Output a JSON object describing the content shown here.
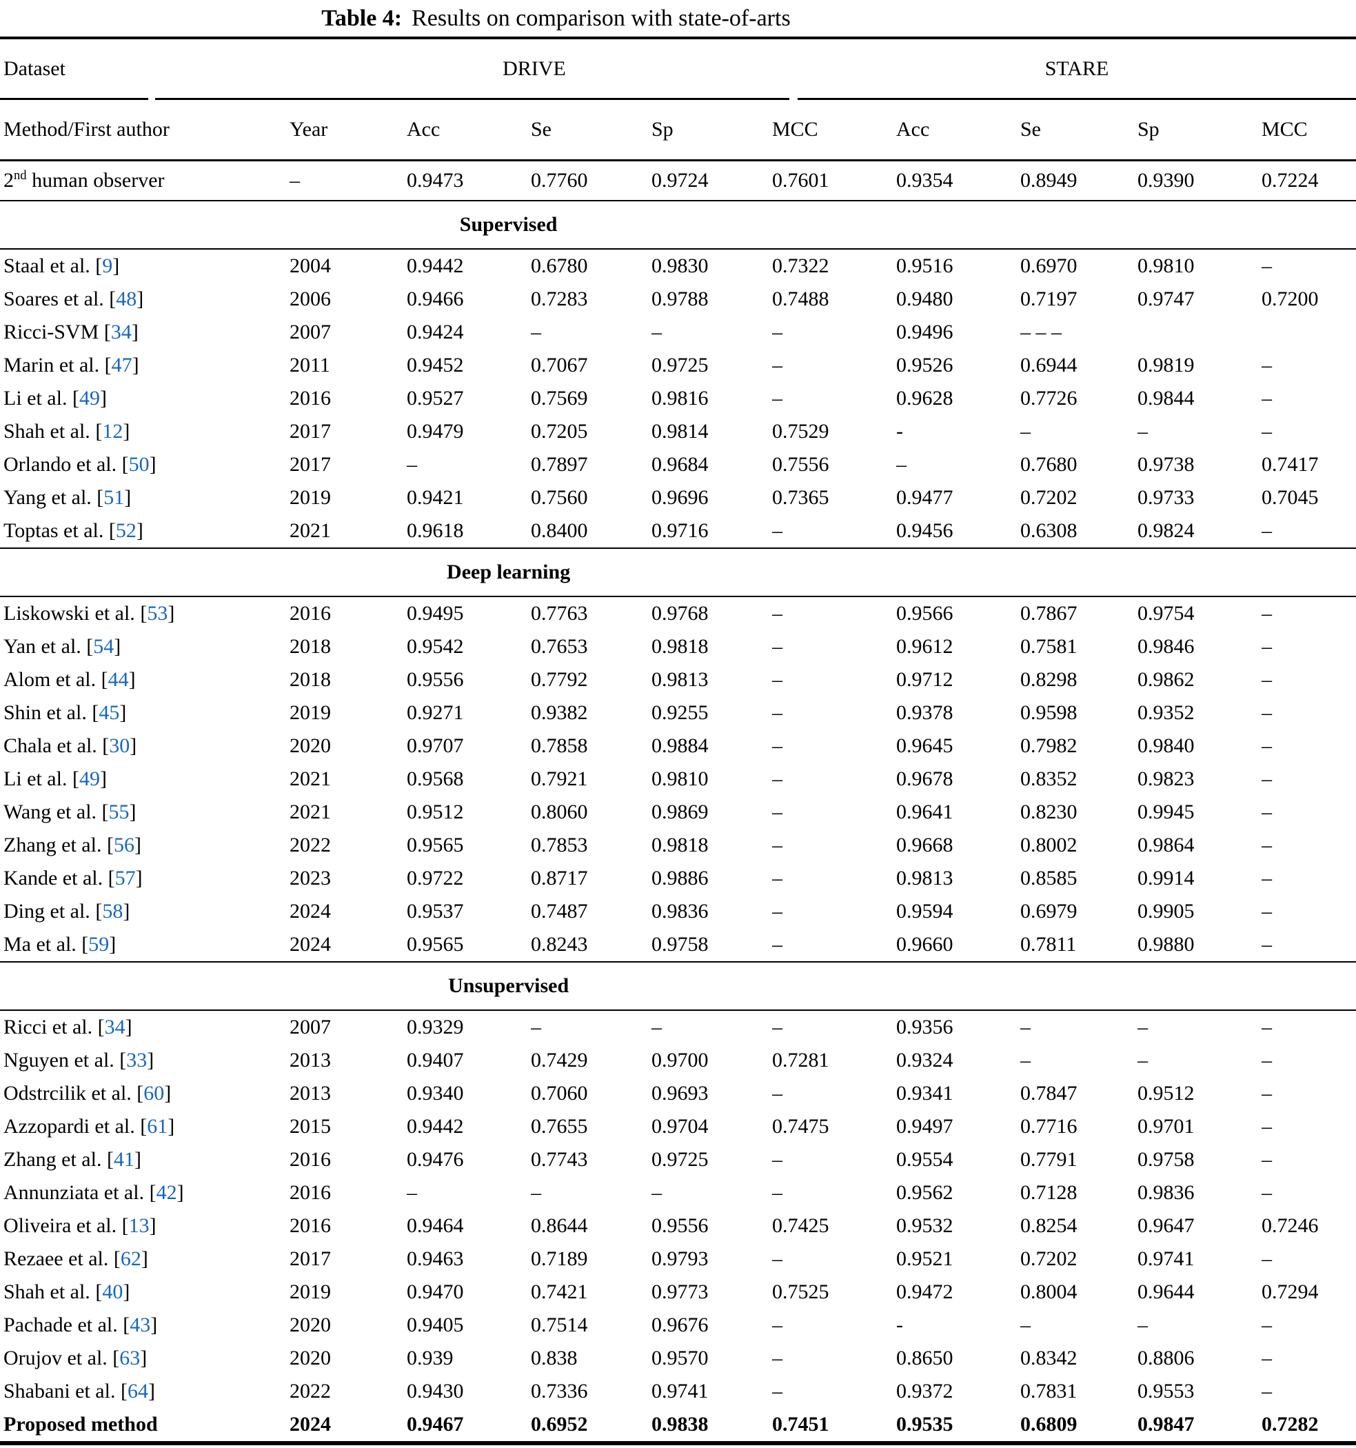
{
  "title": {
    "label": "Table 4:",
    "text": "Results on comparison with state-of-arts"
  },
  "header": {
    "dataset_label": "Dataset",
    "group1": "DRIVE",
    "group2": "STARE",
    "columns": [
      "Method/First author",
      "Year",
      "Acc",
      "Se",
      "Sp",
      "MCC",
      "Acc",
      "Se",
      "Sp",
      "MCC"
    ]
  },
  "baseline_row": {
    "method": "2^{nd} human observer",
    "cells": [
      "–",
      "0.9473",
      "0.7760",
      "0.9724",
      "0.7601",
      "0.9354",
      "0.8949",
      "0.9390",
      "0.7224"
    ]
  },
  "sections": [
    {
      "heading": "Supervised",
      "rows": [
        {
          "method": "Staal et al. [9]",
          "cells": [
            "2004",
            "0.9442",
            "0.6780",
            "0.9830",
            "0.7322",
            "0.9516",
            "0.6970",
            "0.9810",
            "–"
          ]
        },
        {
          "method": "Soares et al. [48]",
          "cells": [
            "2006",
            "0.9466",
            "0.7283",
            "0.9788",
            "0.7488",
            "0.9480",
            "0.7197",
            "0.9747",
            "0.7200"
          ]
        },
        {
          "method": "Ricci-SVM [34]",
          "cells": [
            "2007",
            "0.9424",
            "–",
            "–",
            "–",
            "0.9496",
            "– – –",
            "",
            ""
          ]
        },
        {
          "method": "Marin et al. [47]",
          "cells": [
            "2011",
            "0.9452",
            "0.7067",
            "0.9725",
            "–",
            "0.9526",
            "0.6944",
            "0.9819",
            "–"
          ]
        },
        {
          "method": "Li et al. [49]",
          "cells": [
            "2016",
            "0.9527",
            "0.7569",
            "0.9816",
            "–",
            "0.9628",
            "0.7726",
            "0.9844",
            "–"
          ]
        },
        {
          "method": "Shah et al. [12]",
          "cells": [
            "2017",
            "0.9479",
            "0.7205",
            "0.9814",
            "0.7529",
            "-",
            "–",
            "–",
            "–"
          ]
        },
        {
          "method": "Orlando et al. [50]",
          "cells": [
            "2017",
            "–",
            "0.7897",
            "0.9684",
            "0.7556",
            "–",
            "0.7680",
            "0.9738",
            "0.7417"
          ]
        },
        {
          "method": "Yang et al. [51]",
          "cells": [
            "2019",
            "0.9421",
            "0.7560",
            "0.9696",
            "0.7365",
            "0.9477",
            "0.7202",
            "0.9733",
            "0.7045"
          ]
        },
        {
          "method": "Toptas et al. [52]",
          "cells": [
            "2021",
            "0.9618",
            "0.8400",
            "0.9716",
            "–",
            "0.9456",
            "0.6308",
            "0.9824",
            "–"
          ]
        }
      ]
    },
    {
      "heading": "Deep learning",
      "rows": [
        {
          "method": "Liskowski et al. [53]",
          "cells": [
            "2016",
            "0.9495",
            "0.7763",
            "0.9768",
            "–",
            "0.9566",
            "0.7867",
            "0.9754",
            "–"
          ]
        },
        {
          "method": "Yan et al. [54]",
          "cells": [
            "2018",
            "0.9542",
            "0.7653",
            "0.9818",
            "–",
            "0.9612",
            "0.7581",
            "0.9846",
            "–"
          ]
        },
        {
          "method": "Alom et al. [44]",
          "cells": [
            "2018",
            "0.9556",
            "0.7792",
            "0.9813",
            "–",
            "0.9712",
            "0.8298",
            "0.9862",
            "–"
          ]
        },
        {
          "method": "Shin et al. [45]",
          "cells": [
            "2019",
            "0.9271",
            "0.9382",
            "0.9255",
            "–",
            "0.9378",
            "0.9598",
            "0.9352",
            "–"
          ]
        },
        {
          "method": "Chala et al. [30]",
          "cells": [
            "2020",
            "0.9707",
            "0.7858",
            "0.9884",
            "–",
            "0.9645",
            "0.7982",
            "0.9840",
            "–"
          ]
        },
        {
          "method": "Li et al. [49]",
          "cells": [
            "2021",
            "0.9568",
            "0.7921",
            "0.9810",
            "–",
            "0.9678",
            "0.8352",
            "0.9823",
            "–"
          ]
        },
        {
          "method": "Wang et al. [55]",
          "cells": [
            "2021",
            "0.9512",
            "0.8060",
            "0.9869",
            "–",
            "0.9641",
            "0.8230",
            "0.9945",
            "–"
          ]
        },
        {
          "method": "Zhang et al. [56]",
          "cells": [
            "2022",
            "0.9565",
            "0.7853",
            "0.9818",
            "–",
            "0.9668",
            "0.8002",
            "0.9864",
            "–"
          ]
        },
        {
          "method": "Kande et al. [57]",
          "cells": [
            "2023",
            "0.9722",
            "0.8717",
            "0.9886",
            "–",
            "0.9813",
            "0.8585",
            "0.9914",
            "–"
          ]
        },
        {
          "method": "Ding et al. [58]",
          "cells": [
            "2024",
            "0.9537",
            "0.7487",
            "0.9836",
            "–",
            "0.9594",
            "0.6979",
            "0.9905",
            "–"
          ]
        },
        {
          "method": "Ma et al. [59]",
          "cells": [
            "2024",
            "0.9565",
            "0.8243",
            "0.9758",
            "–",
            "0.9660",
            "0.7811",
            "0.9880",
            "–"
          ]
        }
      ]
    },
    {
      "heading": "Unsupervised",
      "rows": [
        {
          "method": "Ricci et al. [34]",
          "cells": [
            "2007",
            "0.9329",
            "–",
            "–",
            "–",
            "0.9356",
            "–",
            "–",
            "–"
          ]
        },
        {
          "method": "Nguyen et al. [33]",
          "cells": [
            "2013",
            "0.9407",
            "0.7429",
            "0.9700",
            "0.7281",
            "0.9324",
            "–",
            "–",
            "–"
          ]
        },
        {
          "method": "Odstrcilik et al. [60]",
          "cells": [
            "2013",
            "0.9340",
            "0.7060",
            "0.9693",
            "–",
            "0.9341",
            "0.7847",
            "0.9512",
            "–"
          ]
        },
        {
          "method": "Azzopardi et al. [61]",
          "cells": [
            "2015",
            "0.9442",
            "0.7655",
            "0.9704",
            "0.7475",
            "0.9497",
            "0.7716",
            "0.9701",
            "–"
          ]
        },
        {
          "method": "Zhang et al. [41]",
          "cells": [
            "2016",
            "0.9476",
            "0.7743",
            "0.9725",
            "–",
            "0.9554",
            "0.7791",
            "0.9758",
            "–"
          ]
        },
        {
          "method": "Annunziata et al. [42]",
          "cells": [
            "2016",
            "–",
            "–",
            "–",
            "–",
            "0.9562",
            "0.7128",
            "0.9836",
            "–"
          ]
        },
        {
          "method": "Oliveira et al. [13]",
          "cells": [
            "2016",
            "0.9464",
            "0.8644",
            "0.9556",
            "0.7425",
            "0.9532",
            "0.8254",
            "0.9647",
            "0.7246"
          ]
        },
        {
          "method": "Rezaee et al. [62]",
          "cells": [
            "2017",
            "0.9463",
            "0.7189",
            "0.9793",
            "–",
            "0.9521",
            "0.7202",
            "0.9741",
            "–"
          ]
        },
        {
          "method": "Shah et al. [40]",
          "cells": [
            "2019",
            "0.9470",
            "0.7421",
            "0.9773",
            "0.7525",
            "0.9472",
            "0.8004",
            "0.9644",
            "0.7294"
          ]
        },
        {
          "method": "Pachade et al. [43]",
          "cells": [
            "2020",
            "0.9405",
            "0.7514",
            "0.9676",
            "–",
            "-",
            "–",
            "–",
            "–"
          ]
        },
        {
          "method": "Orujov et al. [63]",
          "cells": [
            "2020",
            "0.939",
            "0.838",
            "0.9570",
            "–",
            "0.8650",
            "0.8342",
            "0.8806",
            "–"
          ]
        },
        {
          "method": "Shabani et al. [64]",
          "cells": [
            "2022",
            "0.9430",
            "0.7336",
            "0.9741",
            "–",
            "0.9372",
            "0.7831",
            "0.9553",
            "–"
          ]
        },
        {
          "method": "Proposed method",
          "bold": true,
          "cells": [
            "2024",
            "0.9467",
            "0.6952",
            "0.9838",
            "0.7451",
            "0.9535",
            "0.6809",
            "0.9847",
            "0.7282"
          ]
        }
      ]
    }
  ],
  "colors": {
    "text": "#000000",
    "citation": "#1766c0"
  }
}
